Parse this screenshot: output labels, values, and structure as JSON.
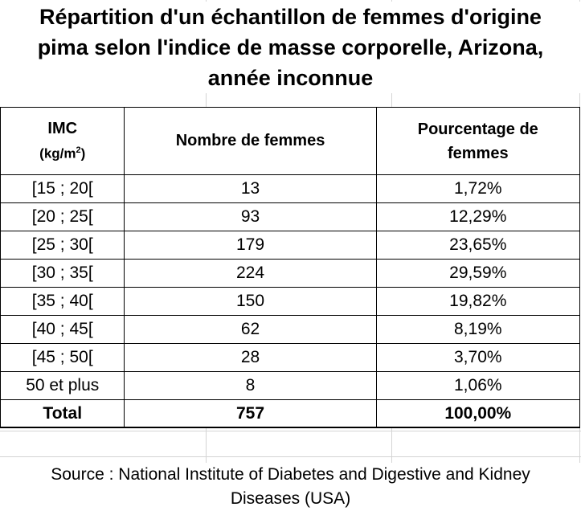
{
  "title": {
    "line1": "Répartition d'un échantillon de femmes d'origine",
    "line2": "pima selon l'indice de masse corporelle, Arizona,",
    "line3": "année inconnue"
  },
  "table": {
    "headers": {
      "imc": "IMC",
      "imc_unit_prefix": "(kg/m",
      "imc_unit_exp": "2",
      "imc_unit_suffix": ")",
      "count": "Nombre de femmes",
      "percent_line1": "Pourcentage de",
      "percent_line2": "femmes"
    },
    "rows": [
      {
        "imc": "[15 ; 20[",
        "count": "13",
        "percent": "1,72%"
      },
      {
        "imc": "[20 ; 25[",
        "count": "93",
        "percent": "12,29%"
      },
      {
        "imc": "[25 ; 30[",
        "count": "179",
        "percent": "23,65%"
      },
      {
        "imc": "[30 ; 35[",
        "count": "224",
        "percent": "29,59%"
      },
      {
        "imc": "[35 ; 40[",
        "count": "150",
        "percent": "19,82%"
      },
      {
        "imc": "[40 ; 45[",
        "count": "62",
        "percent": "8,19%"
      },
      {
        "imc": "[45 ; 50[",
        "count": "28",
        "percent": "3,70%"
      },
      {
        "imc": "50 et plus",
        "count": "8",
        "percent": "1,06%"
      }
    ],
    "total": {
      "label": "Total",
      "count": "757",
      "percent": "100,00%"
    }
  },
  "source": {
    "line1": "Source : National Institute of Diabetes and Digestive and Kidney",
    "line2": "Diseases (USA)"
  }
}
